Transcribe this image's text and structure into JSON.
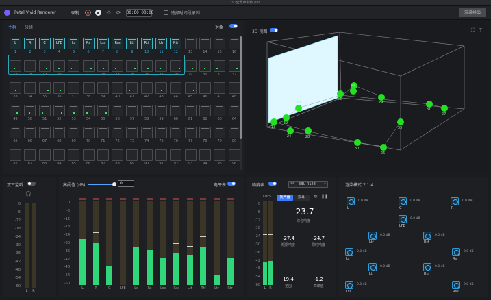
{
  "window": {
    "title": "3D全景声制作.pvr"
  },
  "toolbar": {
    "app_name": "Petal Vivid Renderer",
    "mode_label": "录制",
    "timecode": "00:00:00:00",
    "checkbox_label": "选择时间段录制",
    "export_label": "渲染导出"
  },
  "channels_panel": {
    "tabs": [
      "主群",
      "分组"
    ],
    "active_tab": 0,
    "link_label": "对象",
    "assigned_labels": [
      "L",
      "R",
      "C",
      "LFE",
      "Ls",
      "Rs",
      "Lss",
      "Rrs",
      "Ltf",
      "Rtf",
      "Ltr",
      "Rtr"
    ],
    "numbers": [
      "1",
      "2",
      "3",
      "4",
      "5",
      "6",
      "7",
      "8",
      "9",
      "10",
      "11",
      "12",
      "13",
      "14",
      "15",
      "16",
      "17",
      "18",
      "19",
      "20",
      "21",
      "22",
      "23",
      "24",
      "25",
      "26",
      "27",
      "28",
      "29",
      "30",
      "31",
      "32",
      "33",
      "34",
      "35",
      "36",
      "37",
      "38",
      "39",
      "40",
      "41",
      "42",
      "43",
      "44",
      "45",
      "46",
      "47",
      "48",
      "49",
      "50",
      "51",
      "52",
      "53",
      "54",
      "55",
      "56",
      "57",
      "58",
      "59",
      "60",
      "61",
      "62",
      "63",
      "64",
      "65",
      "66",
      "67",
      "68",
      "69",
      "70",
      "71",
      "72",
      "73",
      "74",
      "75",
      "76",
      "77",
      "78",
      "79",
      "80",
      "81",
      "82",
      "83",
      "84",
      "85",
      "86",
      "87",
      "88",
      "89",
      "90",
      "91",
      "92",
      "93",
      "94",
      "95",
      "96"
    ],
    "active_rows": 6,
    "dotted_cells": [
      17,
      19,
      20,
      21,
      22,
      23,
      24,
      25,
      26,
      27,
      28,
      29,
      30,
      31,
      32,
      33,
      35,
      36,
      41,
      43,
      45,
      49,
      50,
      51,
      52,
      53,
      54,
      55
    ]
  },
  "view3d": {
    "label": "3D 视图",
    "objects": [
      {
        "label": "13"
      },
      {
        "label": "32"
      },
      {
        "label": "24"
      },
      {
        "label": "20"
      },
      {
        "label": "28"
      },
      {
        "label": "30"
      },
      {
        "label": "26"
      },
      {
        "label": "33"
      },
      {
        "label": "29"
      },
      {
        "label": "31"
      },
      {
        "label": "27"
      },
      {
        "label": "36"
      },
      {
        "label": "25"
      },
      {
        "label": "44"
      }
    ]
  },
  "headphone": {
    "label": "双耳监听",
    "scale": [
      "0",
      "-6",
      "-12",
      "-18",
      "-24",
      "-30",
      "-36",
      "-42",
      "-48",
      "-54",
      "-60"
    ],
    "channels": [
      "L",
      "R"
    ]
  },
  "meters": {
    "threshold_label": "高阈值 (dB)",
    "threshold_value": "0",
    "meter_mode_label": "电平表",
    "scale": [
      "0",
      "-6",
      "-12",
      "-18",
      "-24",
      "-30",
      "-36",
      "-42",
      "-48",
      "-54",
      "-60"
    ],
    "channels": [
      {
        "name": "L",
        "level": 0.55,
        "peak": 0.66
      },
      {
        "name": "R",
        "level": 0.5,
        "peak": 0.62
      },
      {
        "name": "C",
        "level": 0.23,
        "peak": 0.35
      },
      {
        "name": "LFE",
        "level": 0.0,
        "peak": 0.0
      },
      {
        "name": "Ls",
        "level": 0.45,
        "peak": 0.56
      },
      {
        "name": "Rs",
        "level": 0.42,
        "peak": 0.53
      },
      {
        "name": "Lss",
        "level": 0.32,
        "peak": 0.4
      },
      {
        "name": "Rss",
        "level": 0.38,
        "peak": 0.49
      },
      {
        "name": "Ltf",
        "level": 0.36,
        "peak": 0.46
      },
      {
        "name": "Rtf",
        "level": 0.46,
        "peak": 0.57
      },
      {
        "name": "Ltr",
        "level": 0.12,
        "peak": 0.2
      },
      {
        "name": "Rtr",
        "level": 0.33,
        "peak": 0.43
      }
    ]
  },
  "loudness": {
    "label": "响度表",
    "standard": "EBU R128",
    "lufs_label": "LUFS",
    "mode_buttons": [
      "扬声器",
      "双耳"
    ],
    "active_mode": 0,
    "integrated": "-23.7",
    "integrated_label": "综合响度",
    "short_term": "-27.4",
    "short_term_label": "短期响度",
    "momentary": "-24.7",
    "momentary_label": "瞬时响度",
    "range": "19.4",
    "range_label": "范围",
    "true_peak": "-1.2",
    "true_peak_label": "真峰值",
    "scale": [
      "0",
      "-6",
      "-12",
      "-18",
      "-24",
      "-30",
      "-36",
      "-42",
      "-48",
      "-54",
      "-60"
    ],
    "meter_channels": [
      "L",
      "R"
    ],
    "meter_levels": [
      0.28,
      0.29
    ]
  },
  "render_mode": {
    "label": "渲染模式 7.1.4",
    "speakers": [
      {
        "name": "L",
        "db": "0.0 dB"
      },
      {
        "name": "C",
        "db": "0.0 dB"
      },
      {
        "name": "R",
        "db": "0.0 dB"
      },
      {
        "name": "LFE",
        "db": "0.0 dB"
      },
      {
        "name": "Ltf",
        "db": "0.0 dB"
      },
      {
        "name": "Rtf",
        "db": "0.0 dB"
      },
      {
        "name": "Ls",
        "db": "0.0 dB"
      },
      {
        "name": "Rs",
        "db": "0.0 dB"
      },
      {
        "name": "Ltr",
        "db": "0.0 dB"
      },
      {
        "name": "Rtr",
        "db": "0.0 dB"
      },
      {
        "name": "Lss",
        "db": "0.0 dB"
      },
      {
        "name": "Rss",
        "db": "0.0 dB"
      }
    ]
  },
  "colors": {
    "accent": "#3f7bff",
    "meter_green": "#2fd67a",
    "object_green": "#22e022",
    "assigned_border": "#3ab7c8"
  }
}
